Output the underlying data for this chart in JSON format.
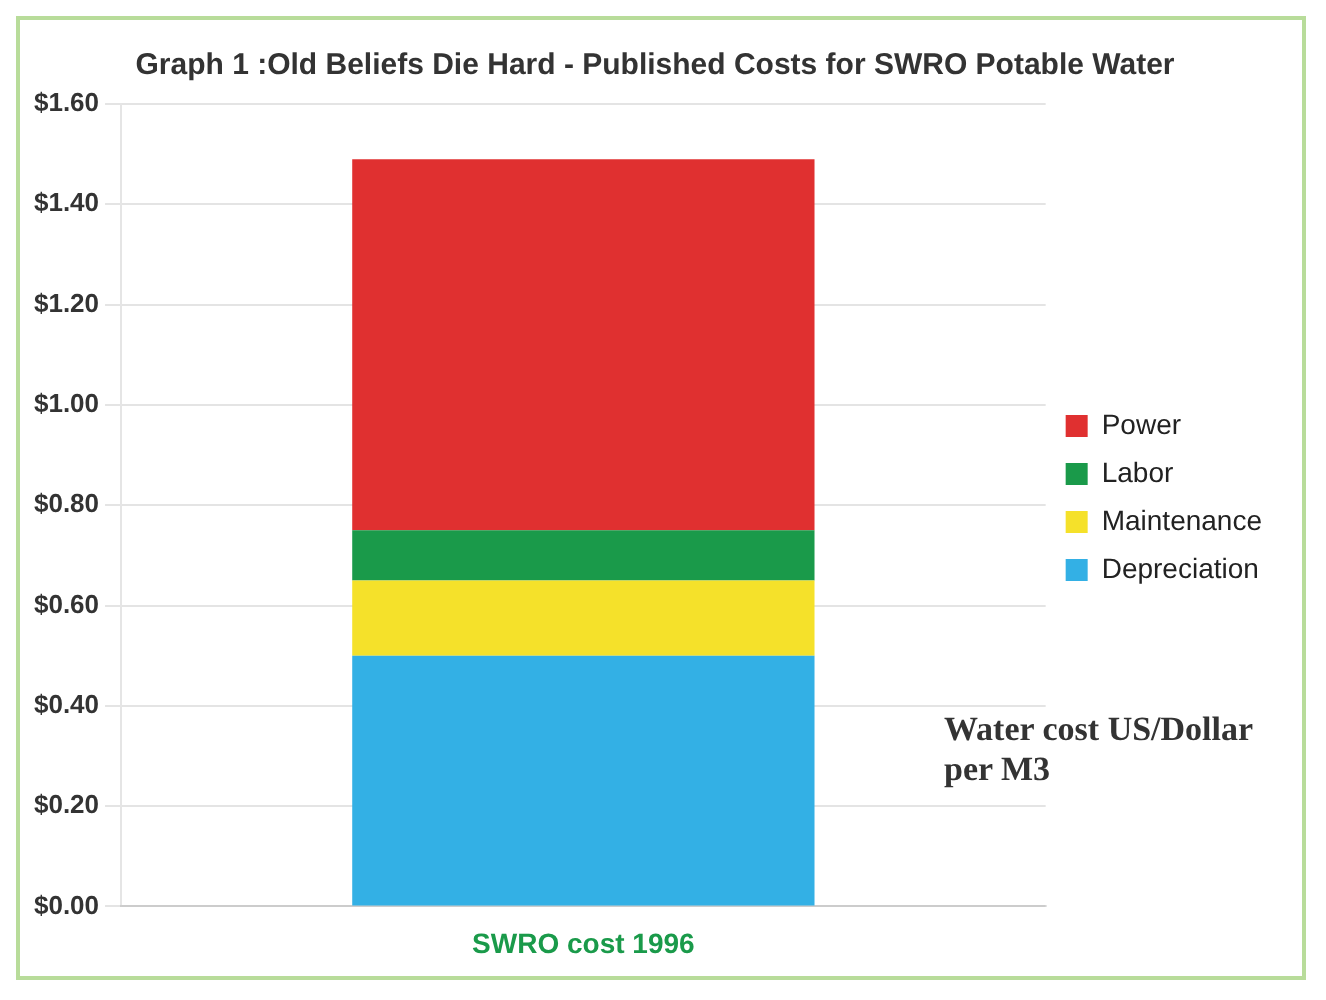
{
  "chart_data": {
    "type": "bar",
    "title": "Graph 1 :Old Beliefs Die Hard - Published Costs for SWRO Potable Water",
    "categories": [
      "SWRO cost 1996"
    ],
    "stacked": true,
    "series": [
      {
        "name": "Depreciation",
        "color": "#33b0e5",
        "values": [
          0.5
        ]
      },
      {
        "name": "Maintenance",
        "color": "#f5e12a",
        "values": [
          0.15
        ]
      },
      {
        "name": "Labor",
        "color": "#1a9a4a",
        "values": [
          0.1
        ]
      },
      {
        "name": "Power",
        "color": "#e03030",
        "values": [
          0.74
        ]
      }
    ],
    "ylim": [
      0,
      1.6
    ],
    "yticks": [
      {
        "value": 0,
        "label": "$0.00"
      },
      {
        "value": 0.2,
        "label": "$0.20"
      },
      {
        "value": 0.4,
        "label": "$0.40"
      },
      {
        "value": 0.6,
        "label": "$0.60"
      },
      {
        "value": 0.8,
        "label": "$0.80"
      },
      {
        "value": 1,
        "label": "$1.00"
      },
      {
        "value": 1.2,
        "label": "$1.20"
      },
      {
        "value": 1.4,
        "label": "$1.40"
      },
      {
        "value": 1.6,
        "label": "$1.60"
      }
    ],
    "grid": "y",
    "legend": "right",
    "annotations": [
      "Water cost US/Dollar per M3"
    ]
  }
}
